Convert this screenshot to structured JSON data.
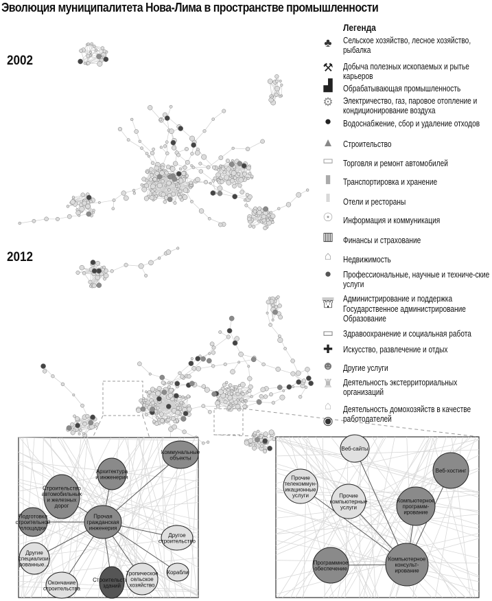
{
  "title": "Эволюция муниципалитета Нова-Лима в пространстве промышленности",
  "years": [
    "2002",
    "2012"
  ],
  "legend": {
    "title": "Легенда",
    "items": [
      {
        "icon": "trees-icon",
        "label": "Сельское хозяйство, лесное хозяйство, рыбалка"
      },
      {
        "icon": "pickaxe-icon",
        "label": "Добыча полезных ископаемых и рытье карьеров"
      },
      {
        "icon": "factory-icon",
        "label": "Обрабатывающая промышленность"
      },
      {
        "icon": "power-icon",
        "label": "Электричество, газ, паровое отопление и кондиционирование воздуха"
      },
      {
        "icon": "water-drop-icon",
        "label": "Водоснабжение, сбор и удаление отходов"
      },
      {
        "icon": "traffic-cone-icon",
        "label": "Строительство"
      },
      {
        "icon": "storefront-icon",
        "label": "Торговля и ремонт автомобилей"
      },
      {
        "icon": "road-icon",
        "label": "Транспортировка и хранение"
      },
      {
        "icon": "fork-knife-icon",
        "label": "Отели и рестораны"
      },
      {
        "icon": "antenna-icon",
        "label": "Информация и коммуникация"
      },
      {
        "icon": "bank-icon",
        "label": "Финансы и страхование"
      },
      {
        "icon": "house-dollar-icon",
        "label": "Недвижимость"
      },
      {
        "icon": "person-icon",
        "label": "Профессиональные, научные и техниче-ские услуги"
      },
      {
        "icon": "desk-person-icon",
        "label": "Администрирование и поддержка"
      },
      {
        "icon": "government-building-icon",
        "label": "Государственное администрирование"
      },
      {
        "icon": "school-icon",
        "label": "Образование"
      },
      {
        "icon": "book-icon",
        "label": "Здравоохранение и социальная работа"
      },
      {
        "icon": "cross-icon",
        "label": "Искусство, развлечение и отдых"
      },
      {
        "icon": "theater-masks-icon",
        "label": "Другие услуги"
      },
      {
        "icon": "statue-icon",
        "label": "Деятельность экстерриториальных организаций"
      },
      {
        "icon": "home-icon",
        "label": "Деятельность домохозяйств в качестве работодателей"
      },
      {
        "icon": "globe-icon",
        "label": "Деятельность домохозяйств в качестве работодателей"
      }
    ]
  },
  "colors": {
    "dark_node": "#555555",
    "mid_node": "#8a8a8a",
    "light_node": "#d6d6d6",
    "edge": "#c8c8c8",
    "highlight_edge": "#555555"
  },
  "inset_left": {
    "nodes": [
      {
        "label": "Коммунальные объекты",
        "shade": "mid"
      },
      {
        "label": "Архитектура и инженерия",
        "shade": "mid"
      },
      {
        "label": "Строительство автомобильных и железных дорог",
        "shade": "mid"
      },
      {
        "label": "Подготовка строительной площадки",
        "shade": "mid"
      },
      {
        "label": "Прочая гражданская инженерия",
        "shade": "mid"
      },
      {
        "label": "Другое строительство",
        "shade": "light"
      },
      {
        "label": "Другие специализированные…",
        "shade": "light"
      },
      {
        "label": "Окончание строительства",
        "shade": "light"
      },
      {
        "label": "Строительство зданий",
        "shade": "dark"
      },
      {
        "label": "Тропическое сельское хозяйство",
        "shade": "light"
      },
      {
        "label": "Корабли",
        "shade": "light"
      }
    ]
  },
  "inset_right": {
    "nodes": [
      {
        "label": "Веб-сайты",
        "shade": "light"
      },
      {
        "label": "Веб-хостинг",
        "shade": "mid"
      },
      {
        "label": "Прочие телекоммуникационные услуги",
        "shade": "light"
      },
      {
        "label": "Прочие компьютерные услуги",
        "shade": "light"
      },
      {
        "label": "Компьютерное программирование",
        "shade": "mid"
      },
      {
        "label": "Компьютерное консультирование",
        "shade": "mid"
      },
      {
        "label": "Программное обеспечение",
        "shade": "mid"
      }
    ]
  }
}
